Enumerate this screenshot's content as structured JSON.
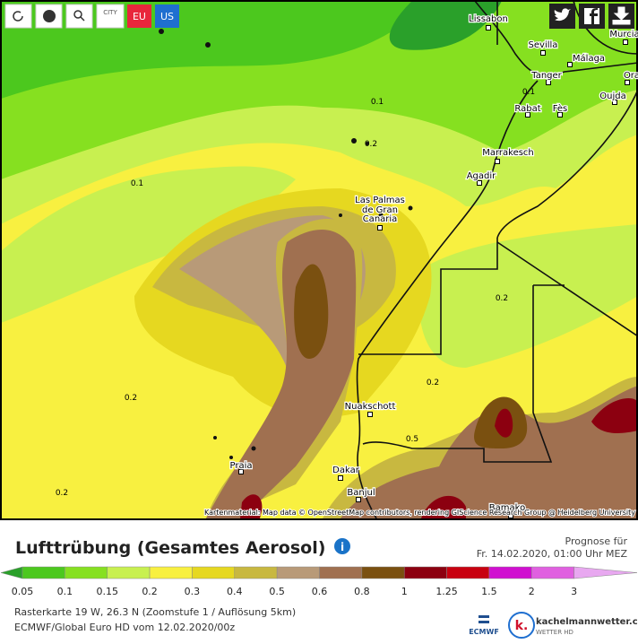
{
  "toolbar": {
    "city": "CITY",
    "eu": "EU",
    "us": "US"
  },
  "map": {
    "places": [
      {
        "label": "Lissabon"
      },
      {
        "label": "Sevilla"
      },
      {
        "label": "Murcia"
      },
      {
        "label": "Málaga"
      },
      {
        "label": "Tanger"
      },
      {
        "label": "Ora"
      },
      {
        "label": "Rabat"
      },
      {
        "label": "Fès"
      },
      {
        "label": "Oujda"
      },
      {
        "label": "Marrakesch"
      },
      {
        "label": "Agadir"
      },
      {
        "label": "Las Palmas"
      },
      {
        "label": "de Gran"
      },
      {
        "label": "Canaria"
      },
      {
        "label": "Nuakschott"
      },
      {
        "label": "Dakar"
      },
      {
        "label": "Praia"
      },
      {
        "label": "Banjul"
      },
      {
        "label": "Bamako"
      }
    ],
    "contours": [
      "0.1",
      "0.2",
      "0.1",
      "0.1",
      "0.2",
      "0.2",
      "0.5",
      "0.2",
      "0.2"
    ],
    "attribution": "Kartenmaterial: Map data © OpenStreetMap contributors, rendering GIScience Research Group @ Heidelberg University"
  },
  "title": "Lufttrübung (Gesamtes Aerosol)",
  "forecast": {
    "label": "Prognose für",
    "time": "Fr. 14.02.2020, 01:00 Uhr MEZ"
  },
  "legend": {
    "colors": [
      "#2aa02a",
      "#4cc81e",
      "#86e020",
      "#c8f050",
      "#f8f040",
      "#e6d820",
      "#c8b840",
      "#b89a78",
      "#a07050",
      "#7a5010",
      "#8c0010",
      "#c80010",
      "#d010d0",
      "#e060e0",
      "#e8a8f0"
    ],
    "labels": [
      "0.05",
      "0.1",
      "0.15",
      "0.2",
      "0.3",
      "0.4",
      "0.5",
      "0.6",
      "0.8",
      "1",
      "1.25",
      "1.5",
      "2",
      "3"
    ]
  },
  "footer": {
    "line1": "Rasterkarte 19 W, 26.3 N (Zoomstufe 1 / Auflösung 5km)",
    "line2": "ECMWF/Global Euro HD vom 12.02.2020/00z"
  },
  "logos": {
    "ecmwf": "ECMWF",
    "site": "kachelmannwetter.com",
    "tagline": "WETTER HD"
  }
}
